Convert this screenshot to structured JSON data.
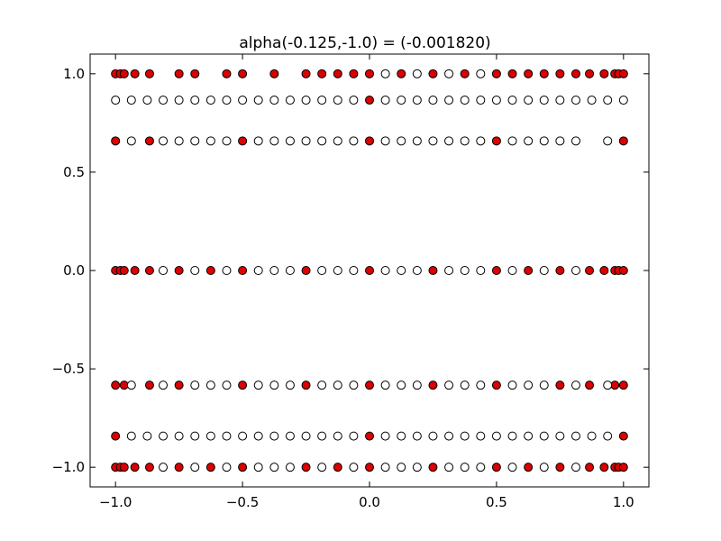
{
  "chart_data": {
    "type": "scatter",
    "title": "alpha(-0.125,-1.0) =  (-0.001820)",
    "xlabel": "",
    "ylabel": "",
    "xlim": [
      -1.1,
      1.1
    ],
    "ylim": [
      -1.1,
      1.1
    ],
    "grid": false,
    "x_ticks": [
      -1.0,
      -0.5,
      0.0,
      0.5,
      1.0
    ],
    "x_tick_labels": [
      "−1.0",
      "−0.5",
      "0.0",
      "0.5",
      "1.0"
    ],
    "y_ticks": [
      -1.0,
      -0.5,
      0.0,
      0.5,
      1.0
    ],
    "y_tick_labels": [
      "−1.0",
      "−0.5",
      "0.0",
      "0.5",
      "1.0"
    ],
    "colors": {
      "filled": "#dd0000",
      "open": "#ffffff",
      "edge": "#000000"
    },
    "series": [
      {
        "marker": "filled",
        "x": [
          -1.0,
          -0.9808,
          -0.9659,
          -0.9239,
          -0.866,
          -0.75,
          -0.625,
          -0.5,
          -0.25,
          -0.125,
          0.0,
          0.25,
          0.5,
          0.625,
          0.75,
          0.866,
          0.9239,
          0.9659,
          0.9808,
          1.0,
          -1.0,
          -0.9808,
          -0.9659,
          -0.9239,
          -0.866,
          -0.75,
          -0.625,
          -0.5,
          -0.25,
          0.0,
          0.25,
          0.5,
          0.625,
          0.75,
          0.866,
          0.9239,
          0.9659,
          0.9808,
          1.0,
          -1.0,
          -0.866,
          -0.5,
          0.0,
          0.5,
          1.0,
          0.0,
          -1.0,
          -0.9808,
          -0.9659,
          -0.9239,
          -0.866,
          -0.75,
          -0.6875,
          -0.5625,
          -0.5,
          -0.375,
          -0.25,
          -0.1875,
          -0.125,
          -0.0625,
          0.0,
          0.125,
          0.25,
          0.375,
          0.5,
          0.5625,
          0.625,
          0.6875,
          0.75,
          0.8125,
          0.866,
          0.9239,
          0.9659,
          0.9808,
          1.0,
          -1.0,
          -0.9659,
          -0.866,
          -0.75,
          -0.5,
          -0.25,
          0.0,
          0.25,
          0.5,
          0.75,
          0.866,
          0.9659,
          1.0,
          -1.0,
          0.0,
          1.0
        ],
        "y": [
          -1.0,
          -1.0,
          -1.0,
          -1.0,
          -1.0,
          -1.0,
          -1.0,
          -1.0,
          -1.0,
          -1.0,
          -1.0,
          -1.0,
          -1.0,
          -1.0,
          -1.0,
          -1.0,
          -1.0,
          -1.0,
          -1.0,
          -1.0,
          0.0,
          0.0,
          0.0,
          0.0,
          0.0,
          0.0,
          0.0,
          0.0,
          0.0,
          0.0,
          0.0,
          0.0,
          0.0,
          0.0,
          0.0,
          0.0,
          0.0,
          0.0,
          0.0,
          0.6585,
          0.6585,
          0.6585,
          0.6585,
          0.6585,
          0.6585,
          0.866,
          1.0,
          1.0,
          1.0,
          1.0,
          1.0,
          1.0,
          1.0,
          1.0,
          1.0,
          1.0,
          1.0,
          1.0,
          1.0,
          1.0,
          1.0,
          1.0,
          1.0,
          1.0,
          1.0,
          1.0,
          1.0,
          1.0,
          1.0,
          1.0,
          1.0,
          1.0,
          1.0,
          1.0,
          1.0,
          -0.5828,
          -0.5828,
          -0.5828,
          -0.5828,
          -0.5828,
          -0.5828,
          -0.5828,
          -0.5828,
          -0.5828,
          -0.5828,
          -0.5828,
          -0.5828,
          -0.5828,
          -0.8415,
          -0.8415,
          -0.8415
        ]
      },
      {
        "marker": "open",
        "x": [
          -0.8125,
          -0.6875,
          -0.5625,
          -0.4375,
          -0.375,
          -0.3125,
          -0.1875,
          -0.0625,
          0.0625,
          0.125,
          0.1875,
          0.3125,
          0.375,
          0.4375,
          0.5625,
          0.6875,
          0.8125,
          -0.8125,
          -0.6875,
          -0.5625,
          -0.4375,
          -0.375,
          -0.3125,
          -0.1875,
          -0.125,
          -0.0625,
          0.0625,
          0.125,
          0.1875,
          0.3125,
          0.375,
          0.4375,
          0.5625,
          0.6875,
          0.8125,
          -0.9375,
          -0.8125,
          -0.75,
          -0.6875,
          -0.625,
          -0.5625,
          -0.4375,
          -0.375,
          -0.3125,
          -0.25,
          -0.1875,
          -0.125,
          -0.0625,
          0.0625,
          0.125,
          0.1875,
          0.25,
          0.3125,
          0.375,
          0.4375,
          0.5625,
          0.625,
          0.6875,
          0.75,
          0.8125,
          0.9375,
          -1.0,
          -0.9375,
          -0.875,
          -0.8125,
          -0.75,
          -0.6875,
          -0.625,
          -0.5625,
          -0.5,
          -0.4375,
          -0.375,
          -0.3125,
          -0.25,
          -0.1875,
          -0.125,
          -0.0625,
          0.0625,
          0.125,
          0.1875,
          0.25,
          0.3125,
          0.375,
          0.4375,
          0.5,
          0.5625,
          0.625,
          0.6875,
          0.75,
          0.8125,
          0.875,
          0.9375,
          1.0,
          0.0625,
          0.1875,
          0.3125,
          0.4375,
          -0.9375,
          -0.8125,
          -0.6875,
          -0.625,
          -0.5625,
          -0.4375,
          -0.375,
          -0.3125,
          -0.1875,
          -0.125,
          -0.0625,
          0.0625,
          0.125,
          0.1875,
          0.3125,
          0.375,
          0.4375,
          0.5625,
          0.625,
          0.6875,
          0.8125,
          0.9375,
          -0.9375,
          -0.875,
          -0.8125,
          -0.75,
          -0.6875,
          -0.625,
          -0.5625,
          -0.5,
          -0.4375,
          -0.375,
          -0.3125,
          -0.25,
          -0.1875,
          -0.125,
          -0.0625,
          0.0625,
          0.125,
          0.1875,
          0.25,
          0.3125,
          0.375,
          0.4375,
          0.5,
          0.5625,
          0.625,
          0.6875,
          0.75,
          0.8125,
          0.875,
          0.9375
        ],
        "y": [
          -1.0,
          -1.0,
          -1.0,
          -1.0,
          -1.0,
          -1.0,
          -1.0,
          -1.0,
          -1.0,
          -1.0,
          -1.0,
          -1.0,
          -1.0,
          -1.0,
          -1.0,
          -1.0,
          -1.0,
          0.0,
          0.0,
          0.0,
          0.0,
          0.0,
          0.0,
          0.0,
          0.0,
          0.0,
          0.0,
          0.0,
          0.0,
          0.0,
          0.0,
          0.0,
          0.0,
          0.0,
          0.0,
          0.6585,
          0.6585,
          0.6585,
          0.6585,
          0.6585,
          0.6585,
          0.6585,
          0.6585,
          0.6585,
          0.6585,
          0.6585,
          0.6585,
          0.6585,
          0.6585,
          0.6585,
          0.6585,
          0.6585,
          0.6585,
          0.6585,
          0.6585,
          0.6585,
          0.6585,
          0.6585,
          0.6585,
          0.6585,
          0.6585,
          0.866,
          0.866,
          0.866,
          0.866,
          0.866,
          0.866,
          0.866,
          0.866,
          0.866,
          0.866,
          0.866,
          0.866,
          0.866,
          0.866,
          0.866,
          0.866,
          0.866,
          0.866,
          0.866,
          0.866,
          0.866,
          0.866,
          0.866,
          0.866,
          0.866,
          0.866,
          0.866,
          0.866,
          0.866,
          0.866,
          0.866,
          0.866,
          1.0,
          1.0,
          1.0,
          1.0,
          -0.5828,
          -0.5828,
          -0.5828,
          -0.5828,
          -0.5828,
          -0.5828,
          -0.5828,
          -0.5828,
          -0.5828,
          -0.5828,
          -0.5828,
          -0.5828,
          -0.5828,
          -0.5828,
          -0.5828,
          -0.5828,
          -0.5828,
          -0.5828,
          -0.5828,
          -0.5828,
          -0.5828,
          -0.5828,
          -0.8415,
          -0.8415,
          -0.8415,
          -0.8415,
          -0.8415,
          -0.8415,
          -0.8415,
          -0.8415,
          -0.8415,
          -0.8415,
          -0.8415,
          -0.8415,
          -0.8415,
          -0.8415,
          -0.8415,
          -0.8415,
          -0.8415,
          -0.8415,
          -0.8415,
          -0.8415,
          -0.8415,
          -0.8415,
          -0.8415,
          -0.8415,
          -0.8415,
          -0.8415,
          -0.8415,
          -0.8415,
          -0.8415,
          -0.8415
        ]
      }
    ]
  }
}
